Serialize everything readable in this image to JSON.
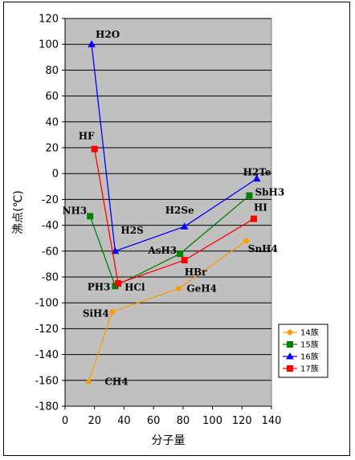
{
  "chart_data": {
    "type": "line",
    "title": "",
    "xlabel": "分子量",
    "ylabel": "沸点(℃)",
    "xlim": [
      0,
      140
    ],
    "ylim": [
      -180,
      120
    ],
    "xticks": [
      "0",
      "20",
      "40",
      "60",
      "80",
      "100",
      "120",
      "140"
    ],
    "yticks": [
      "120",
      "100",
      "80",
      "60",
      "40",
      "20",
      "0",
      "-20",
      "-40",
      "-60",
      "-80",
      "-100",
      "-120",
      "-140",
      "-160",
      "-180"
    ],
    "legend_position": "right",
    "grid": "horizontal",
    "series": [
      {
        "name": "14族",
        "color": "#ff9900",
        "marker": "diamond",
        "points": [
          {
            "x": 16,
            "y": -161,
            "label": "CH4"
          },
          {
            "x": 32,
            "y": -107,
            "label": "SiH4"
          },
          {
            "x": 77,
            "y": -89,
            "label": "GeH4"
          },
          {
            "x": 123,
            "y": -52,
            "label": "SnH4"
          }
        ]
      },
      {
        "name": "15族",
        "color": "#008000",
        "marker": "square",
        "points": [
          {
            "x": 17,
            "y": -33,
            "label": "NH3"
          },
          {
            "x": 34,
            "y": -87,
            "label": "PH3"
          },
          {
            "x": 78,
            "y": -62,
            "label": "AsH3"
          },
          {
            "x": 125,
            "y": -17,
            "label": "SbH3"
          }
        ]
      },
      {
        "name": "16族",
        "color": "#0000ff",
        "marker": "triangle",
        "points": [
          {
            "x": 18,
            "y": 100,
            "label": "H2O"
          },
          {
            "x": 34,
            "y": -60,
            "label": "H2S"
          },
          {
            "x": 81,
            "y": -41,
            "label": "H2Se"
          },
          {
            "x": 130,
            "y": -4,
            "label": "H2Te"
          }
        ]
      },
      {
        "name": "17族",
        "color": "#ff0000",
        "marker": "square",
        "points": [
          {
            "x": 20,
            "y": 19,
            "label": "HF"
          },
          {
            "x": 36,
            "y": -85,
            "label": "HCl"
          },
          {
            "x": 81,
            "y": -67,
            "label": "HBr"
          },
          {
            "x": 128,
            "y": -35,
            "label": "HI"
          }
        ]
      }
    ]
  }
}
